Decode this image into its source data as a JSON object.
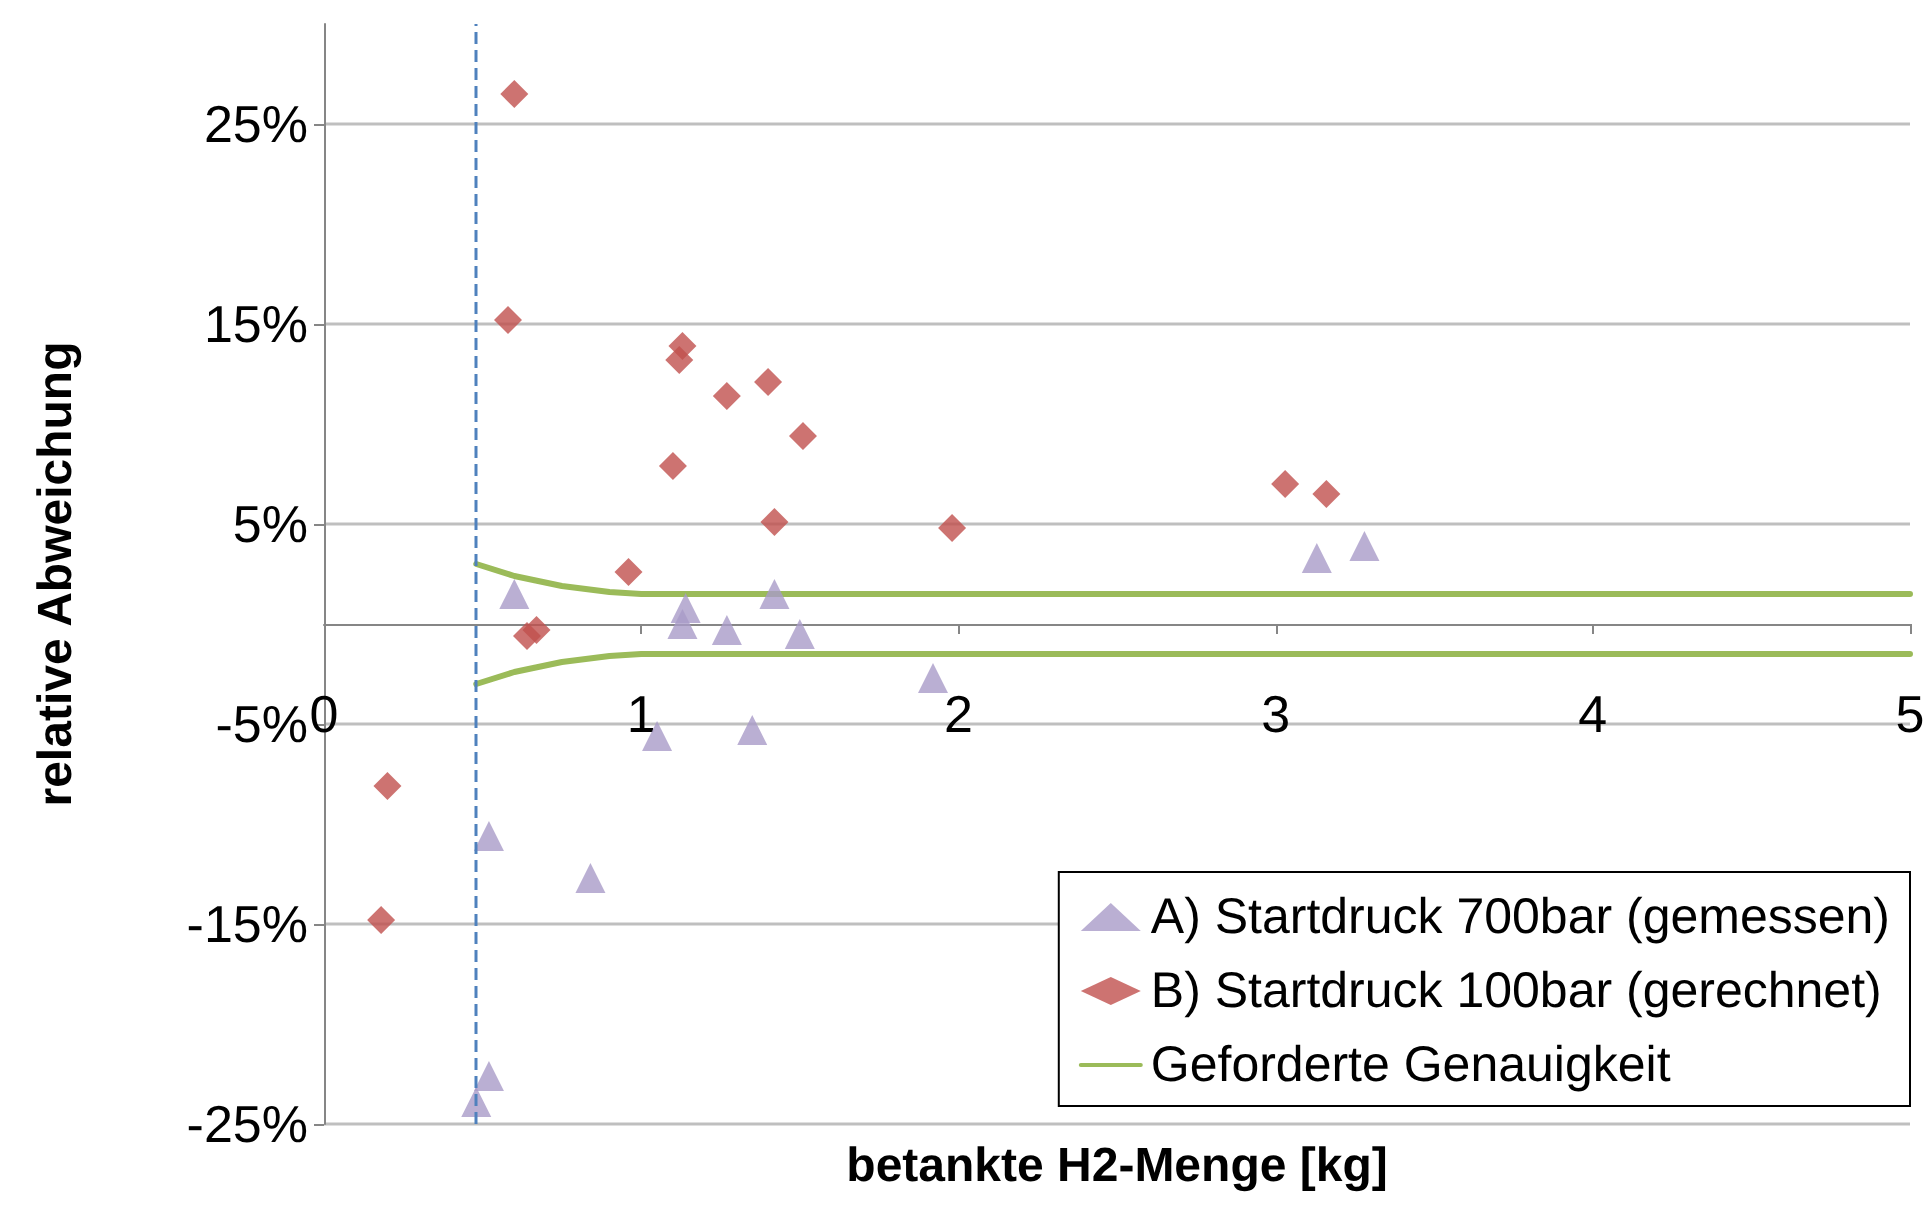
{
  "chart_data": {
    "type": "scatter",
    "xlabel": "betankte H2-Menge [kg]",
    "ylabel": "relative Abweichung",
    "xlim": [
      0,
      5
    ],
    "xticks": [
      0,
      1,
      2,
      3,
      4,
      5
    ],
    "ylim": [
      -25,
      30
    ],
    "yticks": [
      {
        "value": -25,
        "label": "-25%"
      },
      {
        "value": -15,
        "label": "-15%"
      },
      {
        "value": -5,
        "label": "-5%"
      },
      {
        "value": 5,
        "label": "5%"
      },
      {
        "value": 15,
        "label": "15%"
      },
      {
        "value": 25,
        "label": "25%"
      }
    ],
    "grid": "y",
    "legend": "bottom right",
    "ref_lines": [
      {
        "axis": "x",
        "value": 0.48,
        "color": "#4f81bd",
        "line_style": "dashed"
      }
    ],
    "series": [
      {
        "name": "A) Startdruck 700bar (gemessen)",
        "marker": "triangle",
        "color": "#a99bc8",
        "x": [
          0.6,
          1.05,
          1.14,
          1.13,
          1.27,
          1.35,
          1.42,
          1.5,
          1.92,
          3.13,
          3.28,
          0.52,
          0.84,
          0.52,
          0.48
        ],
        "values": [
          1.5,
          -5.6,
          0.8,
          0,
          -0.3,
          -5.3,
          1.5,
          -0.5,
          -2.7,
          3.3,
          3.9,
          -10.6,
          -12.7,
          -22.6,
          -23.9
        ]
      },
      {
        "name": "B) Startdruck 100bar (gerechnet)",
        "marker": "diamond",
        "color": "#c0504d",
        "x": [
          0.6,
          0.58,
          0.64,
          0.67,
          0.96,
          1.1,
          1.13,
          1.12,
          1.27,
          1.4,
          1.42,
          1.51,
          1.98,
          3.03,
          3.16,
          0.2,
          0.18
        ],
        "values": [
          26.5,
          15.2,
          -0.6,
          -0.3,
          2.6,
          7.9,
          13.9,
          13.2,
          11.4,
          12.1,
          5.1,
          9.4,
          4.8,
          7.0,
          6.5,
          -8.1,
          -14.8
        ]
      },
      {
        "name": "Geforderte Genauigkeit",
        "type": "line",
        "marker": "none",
        "line_style": "solid",
        "color": "#9bbb59",
        "x": [
          0.48,
          0.6,
          0.75,
          0.9,
          1.0,
          5.0
        ],
        "values": [
          3.0,
          2.4,
          1.9,
          1.6,
          1.5,
          1.5
        ]
      },
      {
        "type": "line",
        "marker": "none",
        "line_style": "solid",
        "color": "#9bbb59",
        "x": [
          0.48,
          0.6,
          0.75,
          0.9,
          1.0,
          5.0
        ],
        "values": [
          -3.0,
          -2.4,
          -1.9,
          -1.6,
          -1.5,
          -1.5
        ]
      }
    ]
  }
}
